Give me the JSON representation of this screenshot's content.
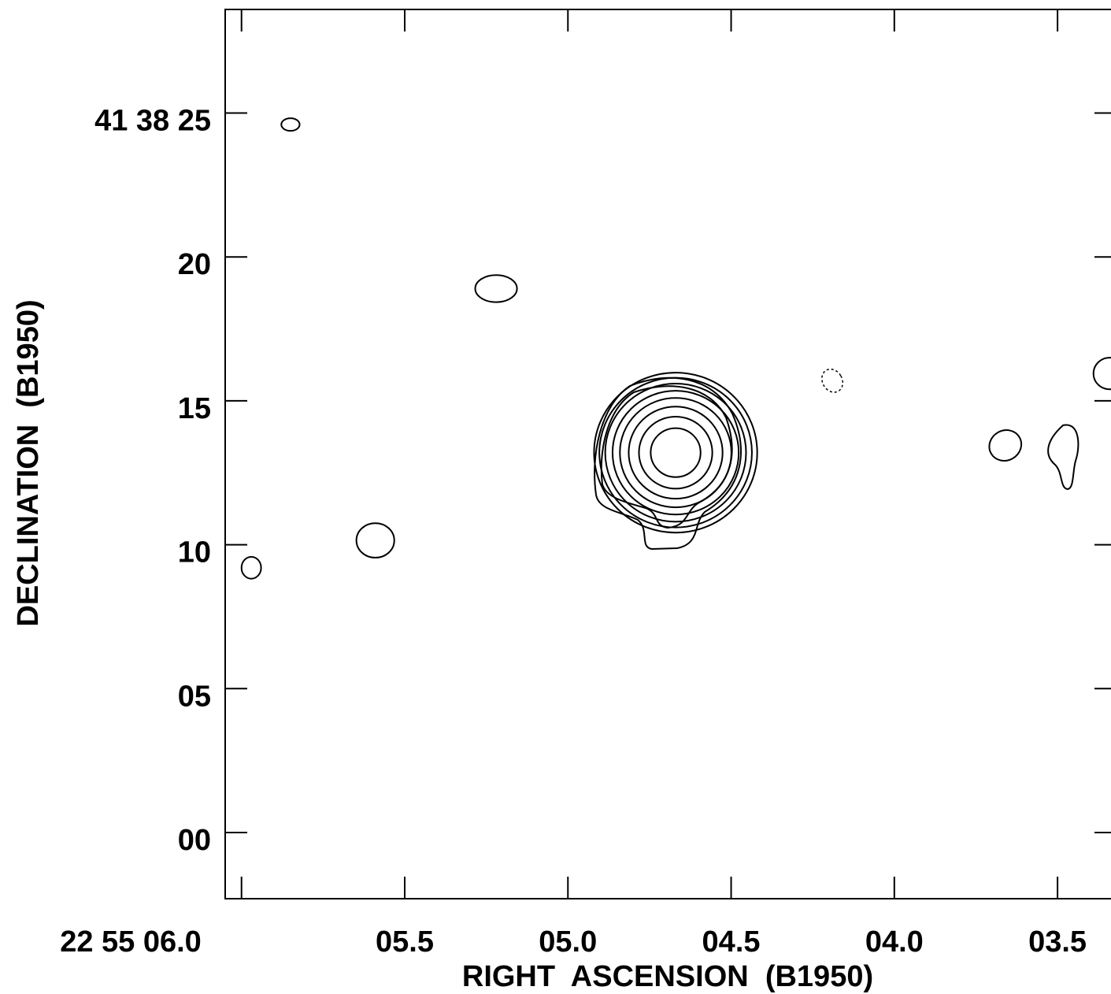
{
  "chart_data": {
    "type": "contour",
    "xlabel": "RIGHT  ASCENSION  (B1950)",
    "ylabel": "DECLINATION  (B1950)",
    "x_axis": {
      "unit": "seconds of RA (22h 55m)",
      "reversed": true,
      "range": [
        6.05,
        3.3
      ],
      "ticks": [
        6.0,
        5.5,
        5.0,
        4.5,
        4.0,
        3.5
      ],
      "tick_labels": [
        "22  55  06.0",
        "05.5",
        "05.0",
        "04.5",
        "04.0",
        "03.5"
      ]
    },
    "y_axis": {
      "unit": "arcseconds of Dec (41d 38m)",
      "range": [
        -2.3,
        28.6
      ],
      "ticks": [
        25,
        20,
        15,
        10,
        5,
        0
      ],
      "tick_labels": [
        "41  38  25",
        "20",
        "15",
        "10",
        "05",
        "00"
      ]
    },
    "grid": false,
    "line_color": "#000000",
    "central_source": {
      "ra_sec": 4.67,
      "dec_sec": 13.2,
      "rings_radius_arcsec": [
        0.85,
        1.25,
        1.6,
        1.9,
        2.15,
        2.4,
        2.6,
        2.78
      ]
    },
    "blobs": [
      {
        "ra_sec": 5.85,
        "dec_sec": 24.6,
        "rx_sec": 0.028,
        "ry_arcsec": 0.22,
        "rotate": 0,
        "dashed": false
      },
      {
        "ra_sec": 5.22,
        "dec_sec": 18.9,
        "rx_sec": 0.064,
        "ry_arcsec": 0.47,
        "rotate": 0,
        "dashed": false
      },
      {
        "ra_sec": 5.59,
        "dec_sec": 10.15,
        "rx_sec": 0.058,
        "ry_arcsec": 0.6,
        "rotate": 0,
        "dashed": false
      },
      {
        "ra_sec": 5.97,
        "dec_sec": 9.2,
        "rx_sec": 0.03,
        "ry_arcsec": 0.38,
        "rotate": 0,
        "dashed": false
      },
      {
        "ra_sec": 4.19,
        "dec_sec": 15.7,
        "rx_sec": 0.03,
        "ry_arcsec": 0.42,
        "rotate": -30,
        "dashed": true
      },
      {
        "ra_sec": 3.66,
        "dec_sec": 13.45,
        "rx_sec": 0.05,
        "ry_arcsec": 0.52,
        "rotate": -30,
        "dashed": false
      },
      {
        "ra_sec": 3.34,
        "dec_sec": 15.95,
        "rx_sec": 0.05,
        "ry_arcsec": 0.55,
        "rotate": 0,
        "dashed": false
      }
    ]
  }
}
